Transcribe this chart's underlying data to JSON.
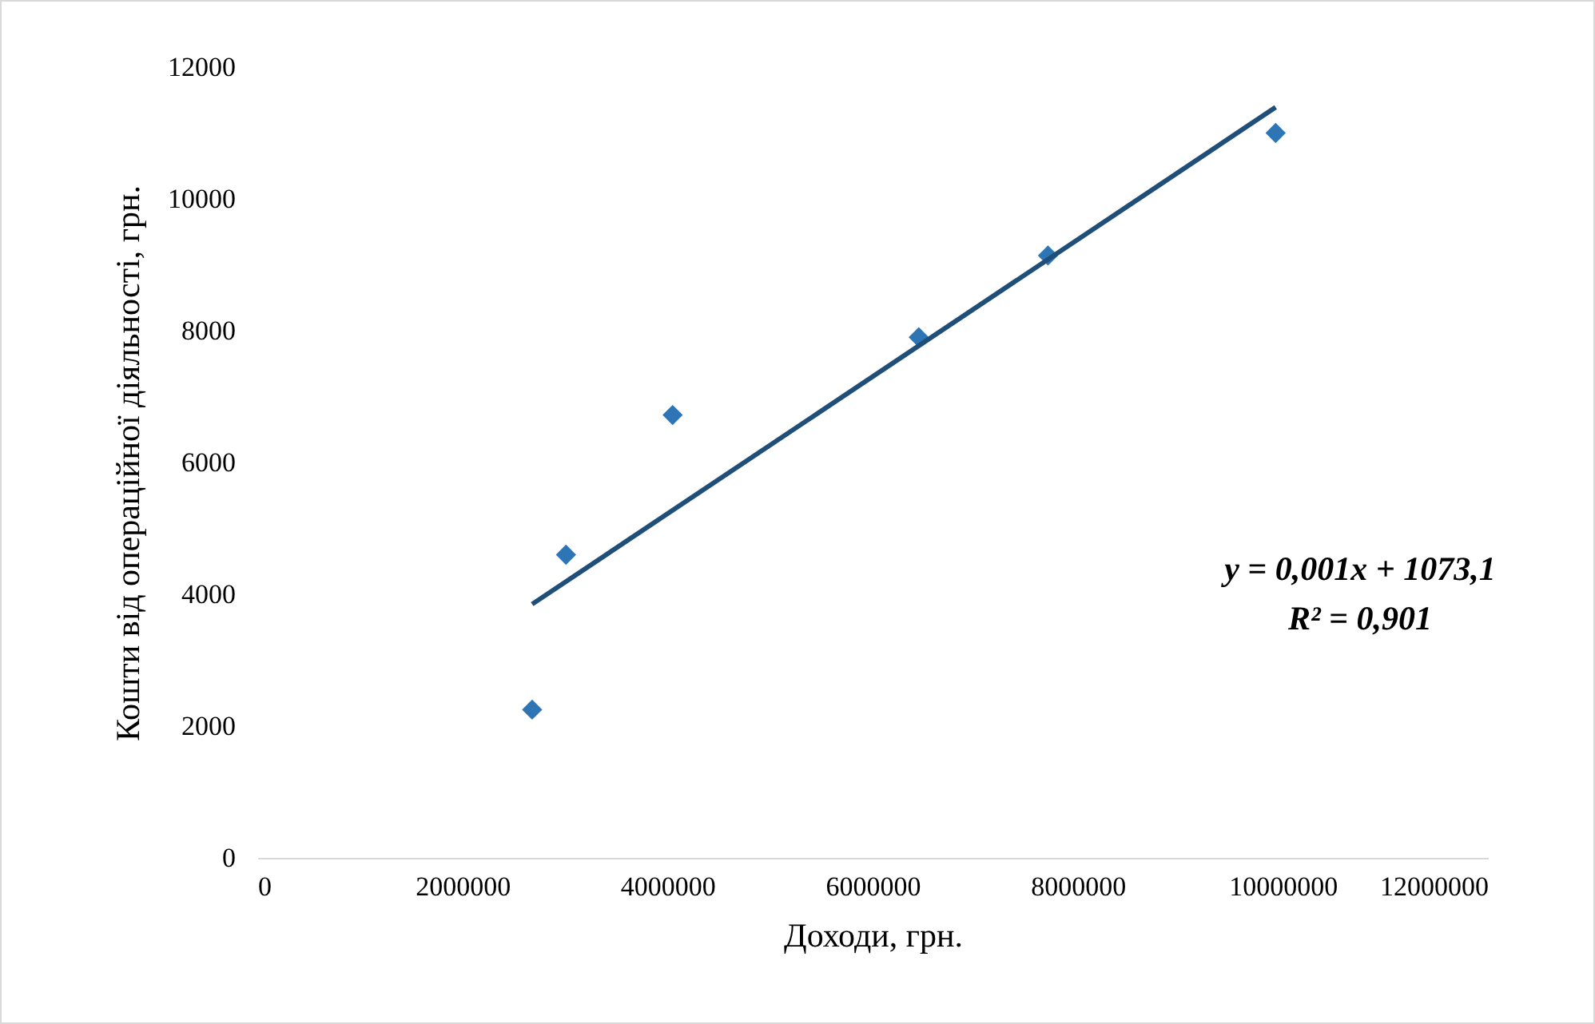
{
  "chart_data": {
    "type": "scatter",
    "xlabel": "Доходи, грн.",
    "ylabel": "Кошти від операційної діяльності, грн.",
    "xlim": [
      0,
      12000000
    ],
    "xticks": [
      0,
      2000000,
      4000000,
      6000000,
      8000000,
      10000000,
      12000000
    ],
    "ylim": [
      0,
      12000
    ],
    "yticks": [
      0,
      2000,
      4000,
      6000,
      8000,
      10000,
      12000
    ],
    "marker": "diamond",
    "grid": false,
    "series": [
      {
        "color": "#2e75b6",
        "x": [
          2680000,
          3010000,
          4050000,
          6450000,
          7710000,
          9930000
        ],
        "values": [
          2250,
          4600,
          6720,
          7900,
          9140,
          11000
        ]
      },
      {
        "type": "line",
        "marker": "none",
        "color": "#1f4e79",
        "x": [
          2680000,
          9930000
        ],
        "values": [
          3850,
          11390
        ]
      }
    ],
    "annotations": [
      "y = 0,001x + 1073,1",
      "R² = 0,901"
    ]
  }
}
